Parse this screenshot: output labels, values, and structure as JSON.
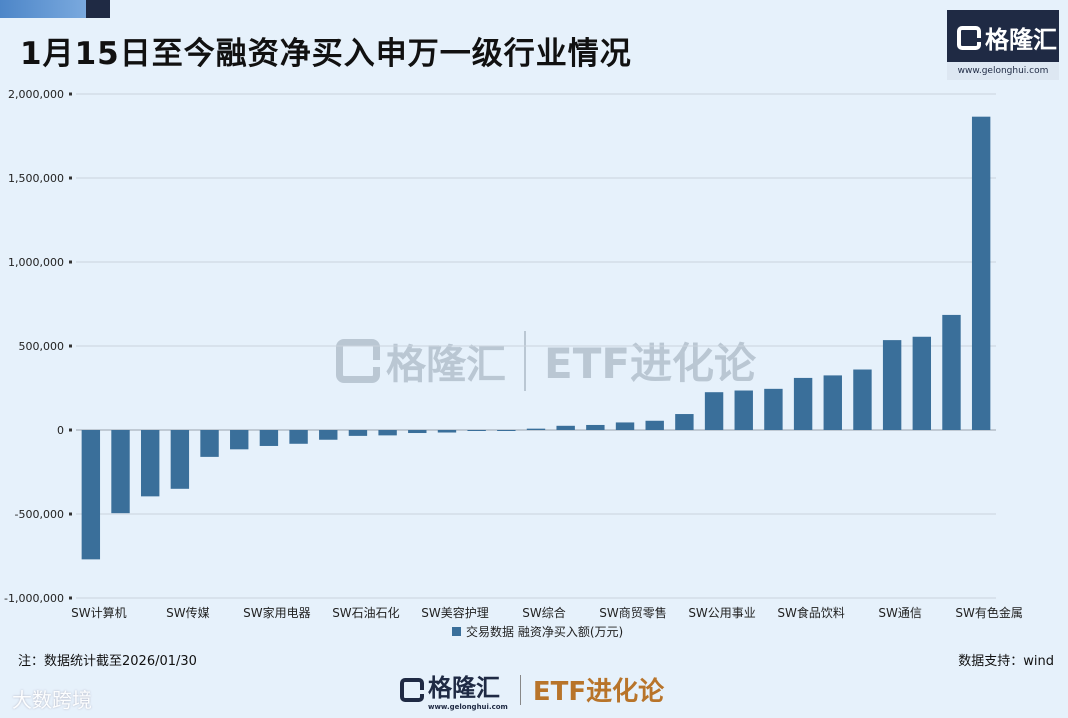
{
  "header": {
    "title": "1月15日至今融资净买入申万一级行业情况"
  },
  "logo": {
    "brand": "格隆汇",
    "url": "www.gelonghui.com"
  },
  "watermark": {
    "brand": "格隆汇",
    "url": "www.gelonghui.com",
    "slogan": "ETF进化论",
    "corner": "大数跨境"
  },
  "footer": {
    "note": "注：数据统计截至2026/01/30",
    "source": "数据支持：wind",
    "brand": "格隆汇",
    "url": "www.gelonghui.com",
    "slogan": "ETF进化论"
  },
  "chart_data": {
    "type": "bar",
    "legend": "交易数据 融资净买入额(万元)",
    "legend_position": "bottom",
    "grid": true,
    "ylim": [
      -1000000,
      2000000
    ],
    "yticks": [
      2000000,
      1500000,
      1000000,
      500000,
      0,
      -500000,
      -1000000
    ],
    "ytick_labels": [
      "2,000,000",
      "1,500,000",
      "1,000,000",
      "500,000",
      "0",
      "-500,000",
      "-1,000,000"
    ],
    "visible_category_labels": [
      "SW计算机",
      "SW传媒",
      "SW家用电器",
      "SW石油石化",
      "SW美容护理",
      "SW综合",
      "SW商贸零售",
      "SW公用事业",
      "SW食品饮料",
      "SW通信",
      "SW有色金属"
    ],
    "label_every": 3,
    "values": [
      -770000,
      -495000,
      -395000,
      -350000,
      -160000,
      -115000,
      -95000,
      -82000,
      -58000,
      -35000,
      -32000,
      -18000,
      -15000,
      -5000,
      -3000,
      8000,
      25000,
      30000,
      45000,
      55000,
      95000,
      225000,
      235000,
      245000,
      310000,
      325000,
      360000,
      535000,
      555000,
      685000,
      1865000
    ],
    "bar_color": "#3a6f9a"
  }
}
